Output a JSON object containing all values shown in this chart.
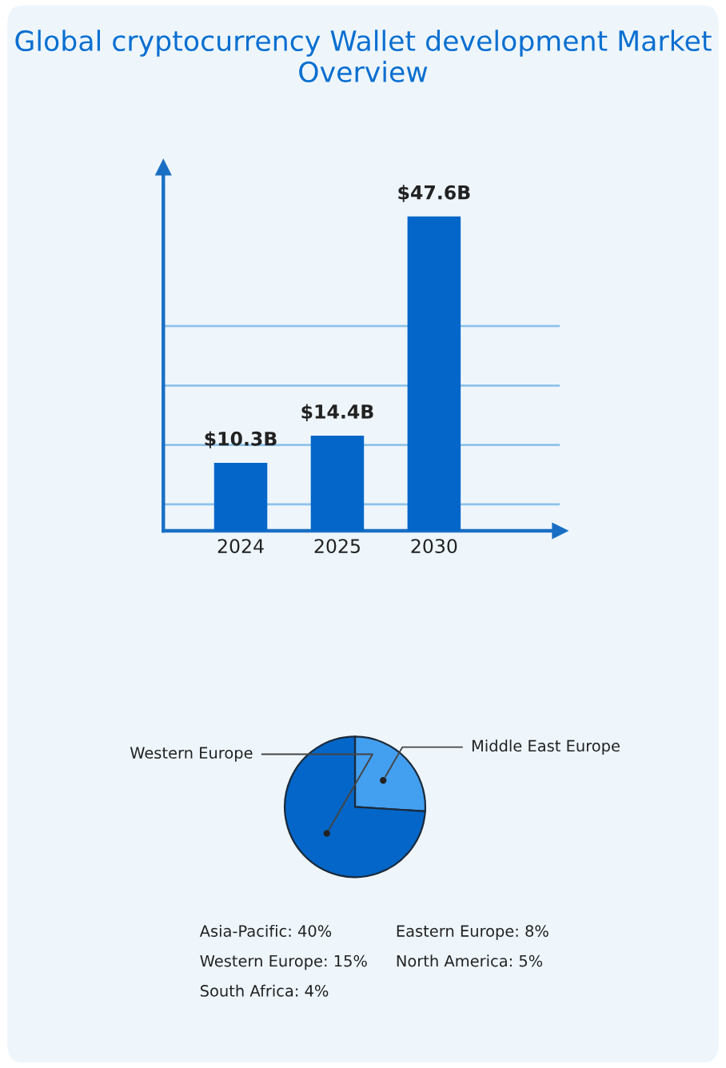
{
  "chart_data": [
    {
      "type": "bar",
      "title": "Global cryptocurrency Wallet development Market Overview",
      "categories": [
        "2024",
        "2025",
        "2030"
      ],
      "values": [
        10.3,
        14.4,
        47.6
      ],
      "value_labels": [
        "$10.3B",
        "$14.4B",
        "$47.6B"
      ],
      "color": "#0366c8",
      "ylim": [
        0,
        55
      ],
      "yticks": [
        {
          "value": 4,
          "label": null
        },
        {
          "value": 13,
          "label": null
        },
        {
          "value": 22,
          "label": null
        },
        {
          "value": 31,
          "label": null
        }
      ],
      "grid": "y",
      "tick_labels": "x"
    },
    {
      "type": "pie",
      "categories": [
        "Middle East Europe",
        "Western Europe"
      ],
      "values": [
        26,
        74
      ],
      "colors": [
        "#439ff0",
        "#0366c8"
      ],
      "annotations": [
        "Asia-Pacific: 40%",
        "Eastern Europe: 8%",
        "Western Europe: 15%",
        "North America: 5%",
        "South Africa: 4%"
      ]
    }
  ]
}
